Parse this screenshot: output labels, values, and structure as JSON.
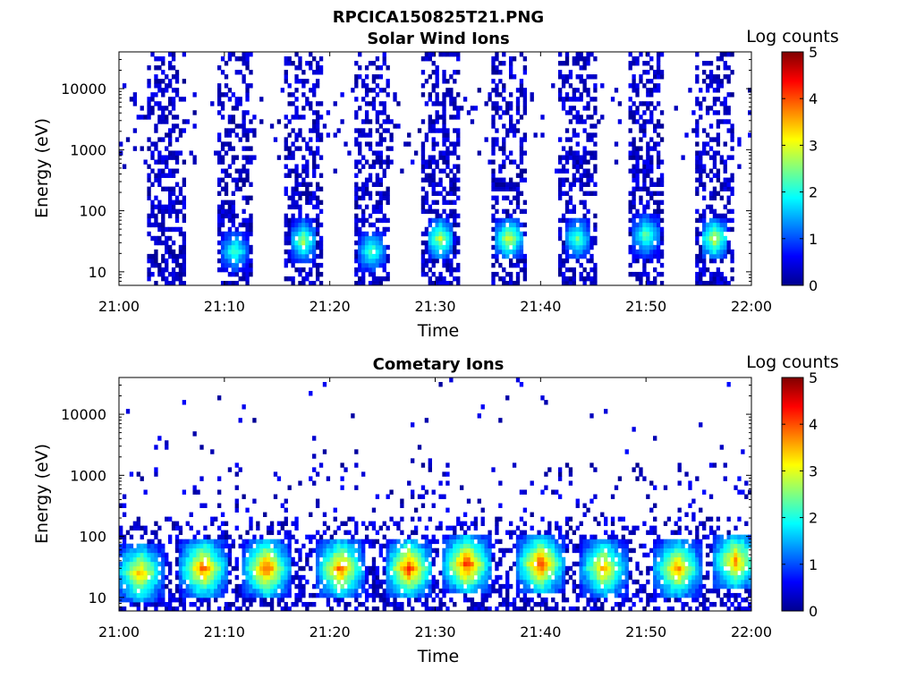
{
  "figure_title": "RPCICA150825T21.PNG",
  "colorbar": {
    "label": "Log counts",
    "ticks": [
      "0",
      "1",
      "2",
      "3",
      "4",
      "5"
    ],
    "range": [
      0,
      5
    ],
    "colormap": "jet",
    "colors": [
      "#00008f",
      "#0000ff",
      "#0080ff",
      "#00ffff",
      "#80ff80",
      "#ffff00",
      "#ff8000",
      "#ff0000",
      "#800000"
    ]
  },
  "chart_data": [
    {
      "type": "heatmap",
      "title": "Solar Wind Ions",
      "xlabel": "Time",
      "ylabel": "Energy (eV)",
      "xticks": [
        "21:00",
        "21:10",
        "21:20",
        "21:30",
        "21:40",
        "21:50",
        "22:00"
      ],
      "xlim": [
        "21:00",
        "22:00"
      ],
      "yticks": [
        "10",
        "100",
        "1000",
        "10000"
      ],
      "ylim": [
        6,
        40000
      ],
      "yscale": "log",
      "clim": [
        0,
        5
      ],
      "scan_centers_min": [
        4.5,
        11,
        17.5,
        24,
        30.5,
        37,
        43.5,
        50,
        56.5
      ],
      "peaks": [
        {
          "time_min": 11,
          "energy_ev": 22,
          "log_counts": 2.2
        },
        {
          "time_min": 17.5,
          "energy_ev": 32,
          "log_counts": 2.6
        },
        {
          "time_min": 24,
          "energy_ev": 22,
          "log_counts": 2.3
        },
        {
          "time_min": 30.5,
          "energy_ev": 35,
          "log_counts": 2.8
        },
        {
          "time_min": 37,
          "energy_ev": 35,
          "log_counts": 3.0
        },
        {
          "time_min": 43.5,
          "energy_ev": 35,
          "log_counts": 2.3
        },
        {
          "time_min": 50,
          "energy_ev": 40,
          "log_counts": 2.4
        },
        {
          "time_min": 56.5,
          "energy_ev": 35,
          "log_counts": 2.9
        }
      ]
    },
    {
      "type": "heatmap",
      "title": "Cometary Ions",
      "xlabel": "Time",
      "ylabel": "Energy (eV)",
      "xticks": [
        "21:00",
        "21:10",
        "21:20",
        "21:30",
        "21:40",
        "21:50",
        "22:00"
      ],
      "xlim": [
        "21:00",
        "22:00"
      ],
      "yticks": [
        "10",
        "100",
        "1000",
        "10000"
      ],
      "ylim": [
        6,
        40000
      ],
      "yscale": "log",
      "clim": [
        0,
        5
      ],
      "scan_centers_min": [
        1.5,
        8,
        14.5,
        21,
        27.5,
        34,
        40.5,
        47,
        53.5,
        59
      ],
      "peaks": [
        {
          "time_min": 2,
          "energy_ev": 25,
          "log_counts": 3.4
        },
        {
          "time_min": 8,
          "energy_ev": 30,
          "log_counts": 3.8
        },
        {
          "time_min": 14,
          "energy_ev": 30,
          "log_counts": 3.9
        },
        {
          "time_min": 21,
          "energy_ev": 30,
          "log_counts": 3.8
        },
        {
          "time_min": 27.5,
          "energy_ev": 30,
          "log_counts": 4.0
        },
        {
          "time_min": 33,
          "energy_ev": 35,
          "log_counts": 4.1
        },
        {
          "time_min": 40,
          "energy_ev": 35,
          "log_counts": 4.0
        },
        {
          "time_min": 46,
          "energy_ev": 30,
          "log_counts": 3.4
        },
        {
          "time_min": 53,
          "energy_ev": 30,
          "log_counts": 3.6
        },
        {
          "time_min": 58.5,
          "energy_ev": 40,
          "log_counts": 3.5
        }
      ]
    }
  ]
}
